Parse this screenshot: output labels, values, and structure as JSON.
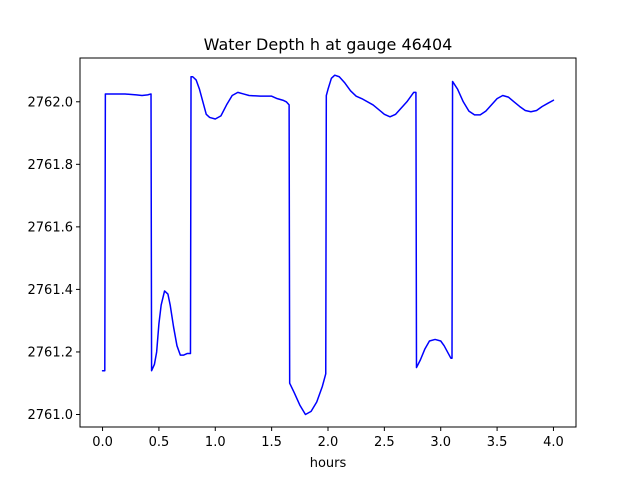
{
  "chart_data": {
    "type": "line",
    "title": "Water Depth h at gauge 46404",
    "xlabel": "hours",
    "ylabel": "",
    "xlim": [
      -0.2,
      4.2
    ],
    "ylim": [
      2760.96,
      2762.14
    ],
    "xticks": [
      0.0,
      0.5,
      1.0,
      1.5,
      2.0,
      2.5,
      3.0,
      3.5,
      4.0
    ],
    "xtick_labels": [
      "0.0",
      "0.5",
      "1.0",
      "1.5",
      "2.0",
      "2.5",
      "3.0",
      "3.5",
      "4.0"
    ],
    "yticks": [
      2761.0,
      2761.2,
      2761.4,
      2761.6,
      2761.8,
      2762.0
    ],
    "ytick_labels": [
      "2761.0",
      "2761.2",
      "2761.4",
      "2761.6",
      "2761.8",
      "2762.0"
    ],
    "grid": false,
    "series": [
      {
        "color": "#0000ff",
        "x": [
          0.0,
          0.02,
          0.025,
          0.1,
          0.2,
          0.3,
          0.35,
          0.4,
          0.43,
          0.435,
          0.46,
          0.48,
          0.5,
          0.52,
          0.55,
          0.58,
          0.6,
          0.63,
          0.66,
          0.69,
          0.72,
          0.75,
          0.78,
          0.785,
          0.8,
          0.83,
          0.86,
          0.89,
          0.92,
          0.95,
          1.0,
          1.05,
          1.1,
          1.15,
          1.2,
          1.25,
          1.3,
          1.4,
          1.5,
          1.55,
          1.6,
          1.63,
          1.655,
          1.66,
          1.7,
          1.75,
          1.8,
          1.85,
          1.9,
          1.95,
          1.98,
          1.985,
          2.0,
          2.03,
          2.06,
          2.1,
          2.15,
          2.2,
          2.25,
          2.3,
          2.4,
          2.5,
          2.55,
          2.6,
          2.65,
          2.7,
          2.76,
          2.78,
          2.785,
          2.82,
          2.86,
          2.9,
          2.95,
          3.0,
          3.03,
          3.06,
          3.09,
          3.1,
          3.105,
          3.15,
          3.2,
          3.25,
          3.3,
          3.35,
          3.4,
          3.45,
          3.5,
          3.55,
          3.6,
          3.65,
          3.7,
          3.75,
          3.8,
          3.85,
          3.9,
          3.95,
          4.0
        ],
        "y": [
          2761.14,
          2761.14,
          2762.025,
          2762.025,
          2762.025,
          2762.022,
          2762.02,
          2762.022,
          2762.025,
          2761.14,
          2761.16,
          2761.2,
          2761.29,
          2761.35,
          2761.395,
          2761.385,
          2761.35,
          2761.28,
          2761.22,
          2761.19,
          2761.19,
          2761.195,
          2761.195,
          2762.08,
          2762.08,
          2762.07,
          2762.04,
          2762.0,
          2761.96,
          2761.95,
          2761.945,
          2761.955,
          2761.99,
          2762.02,
          2762.03,
          2762.025,
          2762.02,
          2762.018,
          2762.018,
          2762.01,
          2762.005,
          2762.0,
          2761.99,
          2761.1,
          2761.07,
          2761.03,
          2761.0,
          2761.01,
          2761.04,
          2761.09,
          2761.13,
          2762.02,
          2762.04,
          2762.075,
          2762.085,
          2762.08,
          2762.06,
          2762.035,
          2762.018,
          2762.01,
          2761.99,
          2761.96,
          2761.952,
          2761.96,
          2761.98,
          2762.0,
          2762.03,
          2762.03,
          2761.15,
          2761.175,
          2761.21,
          2761.235,
          2761.24,
          2761.235,
          2761.22,
          2761.2,
          2761.18,
          2761.18,
          2762.065,
          2762.04,
          2762.0,
          2761.97,
          2761.958,
          2761.958,
          2761.97,
          2761.99,
          2762.01,
          2762.02,
          2762.015,
          2762.0,
          2761.985,
          2761.972,
          2761.968,
          2761.972,
          2761.985,
          2761.995,
          2762.005
        ]
      }
    ]
  }
}
